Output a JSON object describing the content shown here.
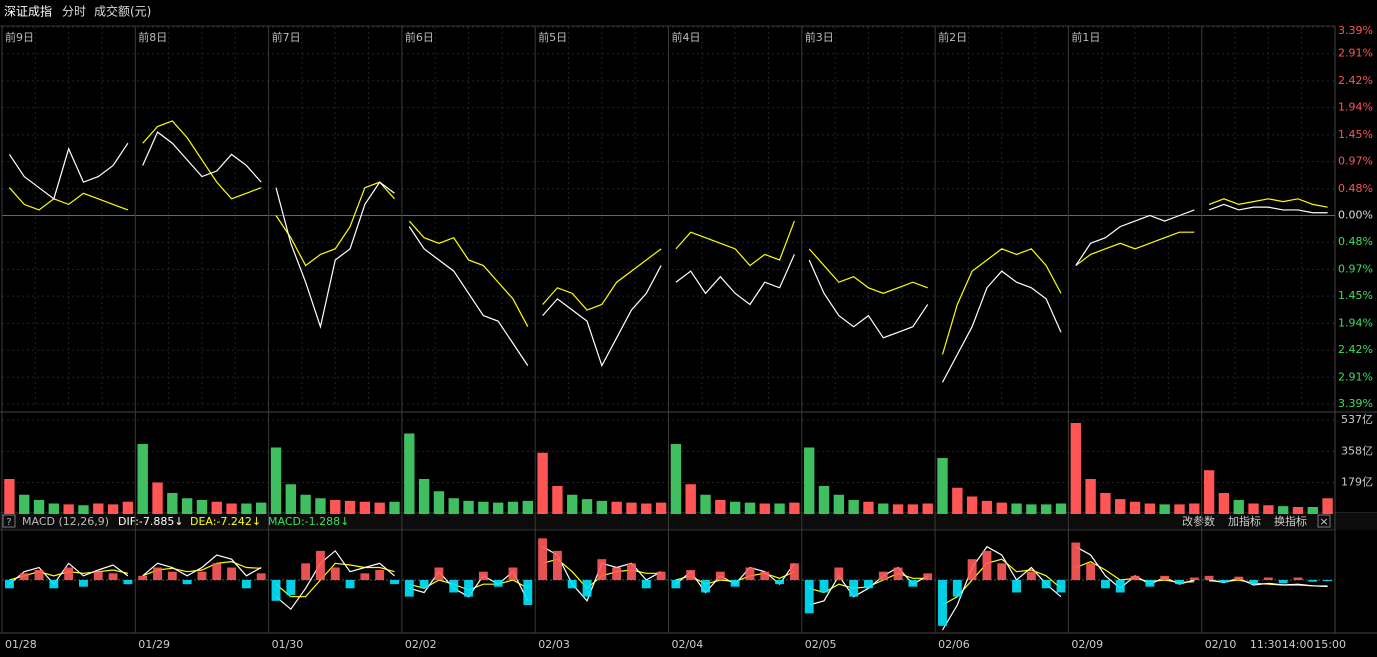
{
  "header": {
    "title": "深证成指",
    "mode": "分时",
    "volume_unit": "成交额(元)"
  },
  "chart_data": {
    "type": "intraday",
    "price_color": "#ffffff",
    "avg_color": "#ffff00",
    "up_color": "#ff5555",
    "down_color": "#3fbf5f",
    "macd_up_color": "#ff5a5a",
    "macd_down_color": "#00e5ff",
    "ylim": [
      -3.39,
      3.39
    ],
    "yticks": [
      {
        "value": 3.39,
        "label": "3.39%"
      },
      {
        "value": 2.91,
        "label": "2.91%"
      },
      {
        "value": 2.42,
        "label": "2.42%"
      },
      {
        "value": 1.94,
        "label": "1.94%"
      },
      {
        "value": 1.45,
        "label": "1.45%"
      },
      {
        "value": 0.97,
        "label": "0.97%"
      },
      {
        "value": 0.48,
        "label": "0.48%"
      },
      {
        "value": 0,
        "label": "0.00%"
      },
      {
        "value": -0.48,
        "label": "0.48%"
      },
      {
        "value": -0.97,
        "label": "0.97%"
      },
      {
        "value": -1.45,
        "label": "1.45%"
      },
      {
        "value": -1.94,
        "label": "1.94%"
      },
      {
        "value": -2.42,
        "label": "2.42%"
      },
      {
        "value": -2.91,
        "label": "2.91%"
      },
      {
        "value": -3.39,
        "label": "3.39%"
      }
    ],
    "volume_ylim": [
      0,
      537
    ],
    "volume_ticks": [
      {
        "value": 537,
        "label": "537亿"
      },
      {
        "value": 358,
        "label": "358亿"
      },
      {
        "value": 179,
        "label": "179亿"
      }
    ],
    "macd_ylim": [
      -60,
      60
    ],
    "days": [
      {
        "date": "01/28",
        "offset_label": "前9日",
        "price": [
          1.1,
          0.7,
          0.5,
          0.3,
          1.2,
          0.6,
          0.7,
          0.9,
          1.3
        ],
        "avg": [
          0.5,
          0.2,
          0.1,
          0.3,
          0.2,
          0.4,
          0.3,
          0.2,
          0.1
        ],
        "volume": [
          200,
          110,
          80,
          60,
          55,
          50,
          60,
          55,
          70
        ],
        "macd": [
          -10,
          8,
          12,
          -10,
          15,
          -8,
          10,
          8,
          -5
        ],
        "dif": [
          -5,
          10,
          15,
          -5,
          20,
          5,
          12,
          18,
          5
        ],
        "dea": [
          0,
          5,
          10,
          5,
          10,
          8,
          10,
          12,
          8
        ]
      },
      {
        "date": "01/29",
        "offset_label": "前8日",
        "price": [
          0.9,
          1.5,
          1.3,
          1.0,
          0.7,
          0.8,
          1.1,
          0.9,
          0.6
        ],
        "avg": [
          1.3,
          1.6,
          1.7,
          1.4,
          1.0,
          0.6,
          0.3,
          0.4,
          0.5
        ],
        "volume": [
          400,
          180,
          120,
          90,
          80,
          70,
          60,
          60,
          65
        ],
        "macd": [
          5,
          15,
          10,
          -5,
          10,
          20,
          15,
          -10,
          8
        ],
        "dif": [
          5,
          20,
          15,
          5,
          15,
          30,
          25,
          5,
          15
        ],
        "dea": [
          5,
          12,
          14,
          10,
          12,
          20,
          22,
          15,
          14
        ]
      },
      {
        "date": "01/30",
        "offset_label": "前7日",
        "price": [
          0.5,
          -0.5,
          -1.2,
          -2.0,
          -0.8,
          -0.6,
          0.2,
          0.6,
          0.4
        ],
        "avg": [
          0.0,
          -0.4,
          -0.9,
          -0.7,
          -0.6,
          -0.2,
          0.5,
          0.6,
          0.3
        ],
        "volume": [
          380,
          170,
          110,
          90,
          80,
          75,
          70,
          65,
          70
        ],
        "macd": [
          -25,
          -18,
          20,
          35,
          15,
          -10,
          8,
          12,
          -5
        ],
        "dif": [
          -20,
          -35,
          -10,
          20,
          35,
          10,
          15,
          20,
          5
        ],
        "dea": [
          -5,
          -20,
          -20,
          0,
          20,
          18,
          15,
          15,
          10
        ]
      },
      {
        "date": "02/02",
        "offset_label": "前6日",
        "price": [
          -0.2,
          -0.6,
          -0.8,
          -1.0,
          -1.4,
          -1.8,
          -1.9,
          -2.3,
          -2.7
        ],
        "avg": [
          -0.1,
          -0.4,
          -0.5,
          -0.4,
          -0.8,
          -0.9,
          -1.2,
          -1.5,
          -2.0
        ],
        "volume": [
          460,
          200,
          130,
          90,
          75,
          70,
          65,
          70,
          75
        ],
        "macd": [
          -20,
          -10,
          15,
          -15,
          -20,
          10,
          -8,
          15,
          -30
        ],
        "dif": [
          -10,
          -15,
          10,
          -10,
          -20,
          5,
          -5,
          10,
          -25
        ],
        "dea": [
          -5,
          -10,
          0,
          -5,
          -12,
          -5,
          -5,
          0,
          -10
        ]
      },
      {
        "date": "02/03",
        "offset_label": "前5日",
        "price": [
          -1.8,
          -1.5,
          -1.7,
          -1.9,
          -2.7,
          -2.2,
          -1.7,
          -1.4,
          -0.9
        ],
        "avg": [
          -1.6,
          -1.3,
          -1.4,
          -1.7,
          -1.6,
          -1.2,
          -1.0,
          -0.8,
          -0.6
        ],
        "volume": [
          350,
          160,
          110,
          85,
          75,
          70,
          65,
          60,
          65
        ],
        "macd": [
          50,
          35,
          -10,
          -20,
          25,
          15,
          20,
          -10,
          10
        ],
        "dif": [
          40,
          30,
          -5,
          -25,
          20,
          15,
          20,
          0,
          10
        ],
        "dea": [
          20,
          25,
          10,
          -10,
          5,
          10,
          12,
          8,
          8
        ]
      },
      {
        "date": "02/04",
        "offset_label": "前4日",
        "price": [
          -1.2,
          -1.0,
          -1.4,
          -1.1,
          -1.4,
          -1.6,
          -1.2,
          -1.3,
          -0.7
        ],
        "avg": [
          -0.6,
          -0.3,
          -0.4,
          -0.5,
          -0.6,
          -0.9,
          -0.7,
          -0.8,
          -0.1
        ],
        "volume": [
          400,
          170,
          110,
          80,
          70,
          65,
          60,
          60,
          65
        ],
        "macd": [
          -10,
          12,
          -15,
          10,
          -8,
          15,
          10,
          -5,
          20
        ],
        "dif": [
          -5,
          10,
          -15,
          5,
          -5,
          15,
          10,
          -5,
          20
        ],
        "dea": [
          0,
          5,
          -5,
          0,
          -2,
          5,
          8,
          2,
          10
        ]
      },
      {
        "date": "02/05",
        "offset_label": "前3日",
        "price": [
          -0.8,
          -1.4,
          -1.8,
          -2.0,
          -1.8,
          -2.2,
          -2.1,
          -2.0,
          -1.6
        ],
        "avg": [
          -0.6,
          -0.9,
          -1.2,
          -1.1,
          -1.3,
          -1.4,
          -1.3,
          -1.2,
          -1.3
        ],
        "volume": [
          380,
          160,
          110,
          80,
          70,
          60,
          55,
          55,
          60
        ],
        "macd": [
          -40,
          -15,
          15,
          -20,
          -10,
          10,
          15,
          -8,
          8
        ],
        "dif": [
          -30,
          -25,
          5,
          -20,
          -10,
          5,
          15,
          -5,
          5
        ],
        "dea": [
          -10,
          -15,
          -5,
          -10,
          -8,
          0,
          8,
          2,
          2
        ]
      },
      {
        "date": "02/06",
        "offset_label": "前2日",
        "price": [
          -3.0,
          -2.5,
          -2.0,
          -1.3,
          -1.0,
          -1.2,
          -1.3,
          -1.5,
          -2.1
        ],
        "avg": [
          -2.5,
          -1.6,
          -1.0,
          -0.8,
          -0.6,
          -0.7,
          -0.6,
          -0.9,
          -1.4
        ],
        "volume": [
          320,
          150,
          100,
          75,
          65,
          60,
          55,
          55,
          60
        ],
        "macd": [
          -55,
          -20,
          25,
          35,
          20,
          -15,
          10,
          -10,
          -15
        ],
        "dif": [
          -60,
          -30,
          15,
          40,
          30,
          0,
          15,
          -5,
          -20
        ],
        "dea": [
          -30,
          -20,
          0,
          20,
          25,
          10,
          12,
          5,
          -10
        ]
      },
      {
        "date": "02/09",
        "offset_label": "前1日",
        "price": [
          -0.9,
          -0.5,
          -0.4,
          -0.2,
          -0.1,
          0.0,
          -0.1,
          0.0,
          0.1
        ],
        "avg": [
          -0.9,
          -0.7,
          -0.6,
          -0.5,
          -0.6,
          -0.5,
          -0.4,
          -0.3,
          -0.3
        ],
        "volume": [
          520,
          200,
          120,
          85,
          70,
          60,
          55,
          55,
          60
        ],
        "macd": [
          45,
          20,
          -10,
          -15,
          5,
          -8,
          5,
          -5,
          3
        ],
        "dif": [
          40,
          30,
          5,
          -10,
          5,
          -5,
          3,
          -5,
          0
        ],
        "dea": [
          15,
          22,
          12,
          0,
          2,
          -2,
          0,
          -3,
          -2
        ]
      },
      {
        "date": "02/10",
        "price": [
          0.1,
          0.2,
          0.1,
          0.15,
          0.15,
          0.1,
          0.1,
          0.05,
          0.05
        ],
        "avg": [
          0.2,
          0.3,
          0.2,
          0.25,
          0.3,
          0.25,
          0.3,
          0.2,
          0.15
        ],
        "volume": [
          250,
          120,
          80,
          60,
          50,
          45,
          40,
          40,
          90
        ],
        "macd": [
          5,
          -3,
          4,
          -5,
          3,
          -4,
          3,
          -2,
          -1.288
        ],
        "dif": [
          0,
          -3,
          2,
          -6,
          -4,
          -6,
          -5,
          -7,
          -7.885
        ],
        "dea": [
          -1,
          -2,
          0,
          -4,
          -5,
          -6,
          -6,
          -7,
          -7.242
        ]
      }
    ],
    "time_labels": [
      "11:30",
      "14:00",
      "15:00"
    ]
  },
  "macd_header": {
    "help": "?",
    "name": "MACD (12,26,9)",
    "dif": "DIF:-7.885↓",
    "dea": "DEA:-7.242↓",
    "macd": "MACD:-1.288↓",
    "buttons": [
      "改参数",
      "加指标",
      "换指标"
    ],
    "close": "×"
  }
}
